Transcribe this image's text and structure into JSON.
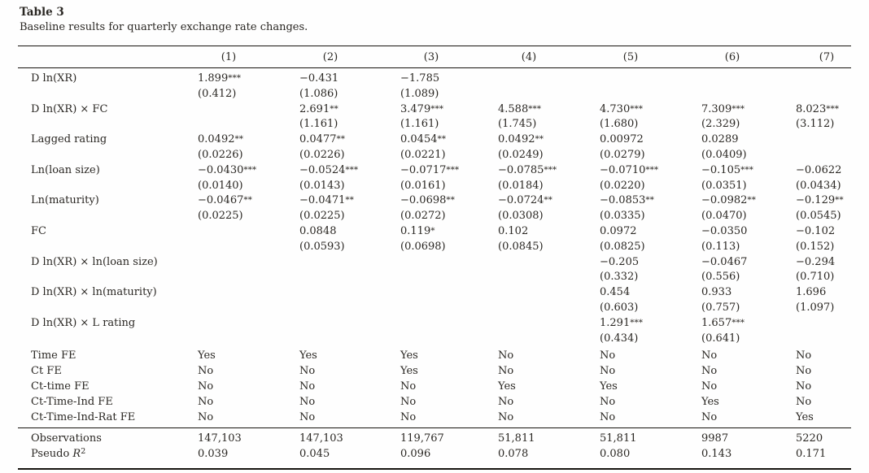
{
  "title": "Table 3",
  "subtitle": "Baseline results for quarterly exchange rate changes.",
  "columns": [
    "(1)",
    "(2)",
    "(3)",
    "(4)",
    "(5)",
    "(6)",
    "(7)"
  ],
  "coefficients": [
    {
      "label": "D ln(XR)",
      "estimates": [
        "1.899***",
        "−0.431",
        "−1.785",
        "",
        "",
        "",
        ""
      ],
      "std_errors": [
        "(0.412)",
        "(1.086)",
        "(1.089)",
        "",
        "",
        "",
        ""
      ]
    },
    {
      "label": "D ln(XR) × FC",
      "estimates": [
        "",
        "2.691**",
        "3.479***",
        "4.588***",
        "4.730***",
        "7.309***",
        "8.023***"
      ],
      "std_errors": [
        "",
        "(1.161)",
        "(1.161)",
        "(1.745)",
        "(1.680)",
        "(2.329)",
        "(3.112)"
      ]
    },
    {
      "label": "Lagged rating",
      "estimates": [
        "0.0492**",
        "0.0477**",
        "0.0454**",
        "0.0492**",
        "0.00972",
        "0.0289",
        ""
      ],
      "std_errors": [
        "(0.0226)",
        "(0.0226)",
        "(0.0221)",
        "(0.0249)",
        "(0.0279)",
        "(0.0409)",
        ""
      ]
    },
    {
      "label": "Ln(loan size)",
      "estimates": [
        "−0.0430***",
        "−0.0524***",
        "−0.0717***",
        "−0.0785***",
        "−0.0710***",
        "−0.105***",
        "−0.0622"
      ],
      "std_errors": [
        "(0.0140)",
        "(0.0143)",
        "(0.0161)",
        "(0.0184)",
        "(0.0220)",
        "(0.0351)",
        "(0.0434)"
      ]
    },
    {
      "label": "Ln(maturity)",
      "estimates": [
        "−0.0467**",
        "−0.0471**",
        "−0.0698**",
        "−0.0724**",
        "−0.0853**",
        "−0.0982**",
        "−0.129**"
      ],
      "std_errors": [
        "(0.0225)",
        "(0.0225)",
        "(0.0272)",
        "(0.0308)",
        "(0.0335)",
        "(0.0470)",
        "(0.0545)"
      ]
    },
    {
      "label": "FC",
      "estimates": [
        "",
        "0.0848",
        "0.119*",
        "0.102",
        "0.0972",
        "−0.0350",
        "−0.102"
      ],
      "std_errors": [
        "",
        "(0.0593)",
        "(0.0698)",
        "(0.0845)",
        "(0.0825)",
        "(0.113)",
        "(0.152)"
      ]
    },
    {
      "label": "D ln(XR) × ln(loan size)",
      "estimates": [
        "",
        "",
        "",
        "",
        "−0.205",
        "−0.0467",
        "−0.294"
      ],
      "std_errors": [
        "",
        "",
        "",
        "",
        "(0.332)",
        "(0.556)",
        "(0.710)"
      ]
    },
    {
      "label": "D ln(XR) × ln(maturity)",
      "estimates": [
        "",
        "",
        "",
        "",
        "0.454",
        "0.933",
        "1.696"
      ],
      "std_errors": [
        "",
        "",
        "",
        "",
        "(0.603)",
        "(0.757)",
        "(1.097)"
      ]
    },
    {
      "label": "D ln(XR) × L rating",
      "estimates": [
        "",
        "",
        "",
        "",
        "1.291***",
        "1.657***",
        ""
      ],
      "std_errors": [
        "",
        "",
        "",
        "",
        "(0.434)",
        "(0.641)",
        ""
      ]
    }
  ],
  "fixed_effects": [
    {
      "label": "Time FE",
      "values": [
        "Yes",
        "Yes",
        "Yes",
        "No",
        "No",
        "No",
        "No"
      ]
    },
    {
      "label": "Ct FE",
      "values": [
        "No",
        "No",
        "Yes",
        "No",
        "No",
        "No",
        "No"
      ]
    },
    {
      "label": "Ct-time FE",
      "values": [
        "No",
        "No",
        "No",
        "Yes",
        "Yes",
        "No",
        "No"
      ]
    },
    {
      "label": "Ct-Time-Ind FE",
      "values": [
        "No",
        "No",
        "No",
        "No",
        "No",
        "Yes",
        "No"
      ]
    },
    {
      "label": "Ct-Time-Ind-Rat FE",
      "values": [
        "No",
        "No",
        "No",
        "No",
        "No",
        "No",
        "Yes"
      ]
    }
  ],
  "statistics": [
    {
      "label": "Observations",
      "values": [
        "147,103",
        "147,103",
        "119,767",
        "51,811",
        "51,811",
        "9987",
        "5220"
      ]
    },
    {
      "label": "Pseudo R^2",
      "values": [
        "0.039",
        "0.045",
        "0.096",
        "0.078",
        "0.080",
        "0.143",
        "0.171"
      ]
    }
  ]
}
